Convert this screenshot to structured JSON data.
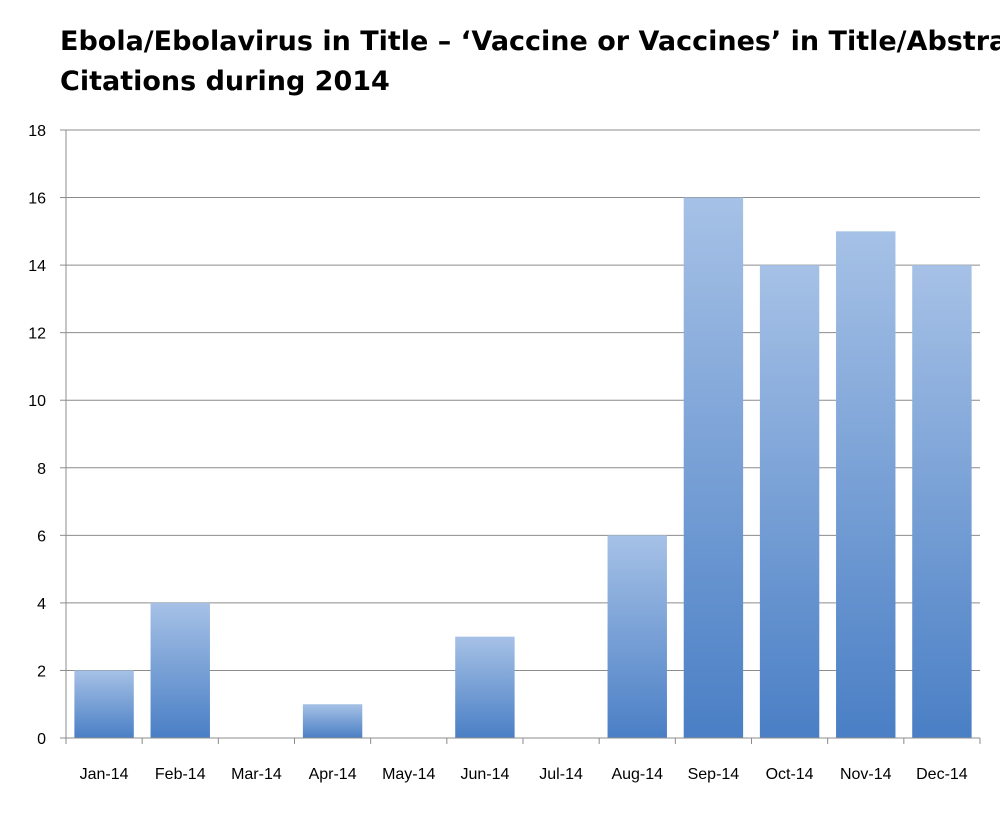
{
  "chart_data": {
    "type": "bar",
    "title_lines": [
      "Ebola/Ebolavirus in Title – ‘Vaccine or Vaccines’ in Title/Abstract",
      "Citations during 2014"
    ],
    "categories": [
      "Jan-14",
      "Feb-14",
      "Mar-14",
      "Apr-14",
      "May-14",
      "Jun-14",
      "Jul-14",
      "Aug-14",
      "Sep-14",
      "Oct-14",
      "Nov-14",
      "Dec-14"
    ],
    "values": [
      2,
      4,
      0,
      1,
      0,
      3,
      0,
      6,
      16,
      14,
      15,
      14
    ],
    "xlabel": "",
    "ylabel": "",
    "ylim": [
      0,
      18
    ],
    "yticks": [
      "0",
      "2",
      "4",
      "6",
      "8",
      "10",
      "12",
      "14",
      "16",
      "18"
    ],
    "grid": true,
    "legend": "none",
    "colors": {
      "bar_top": "#a6c1e6",
      "bar_bottom": "#4a7fc5",
      "grid": "#8c8c8c",
      "axis": "#8c8c8c"
    }
  }
}
